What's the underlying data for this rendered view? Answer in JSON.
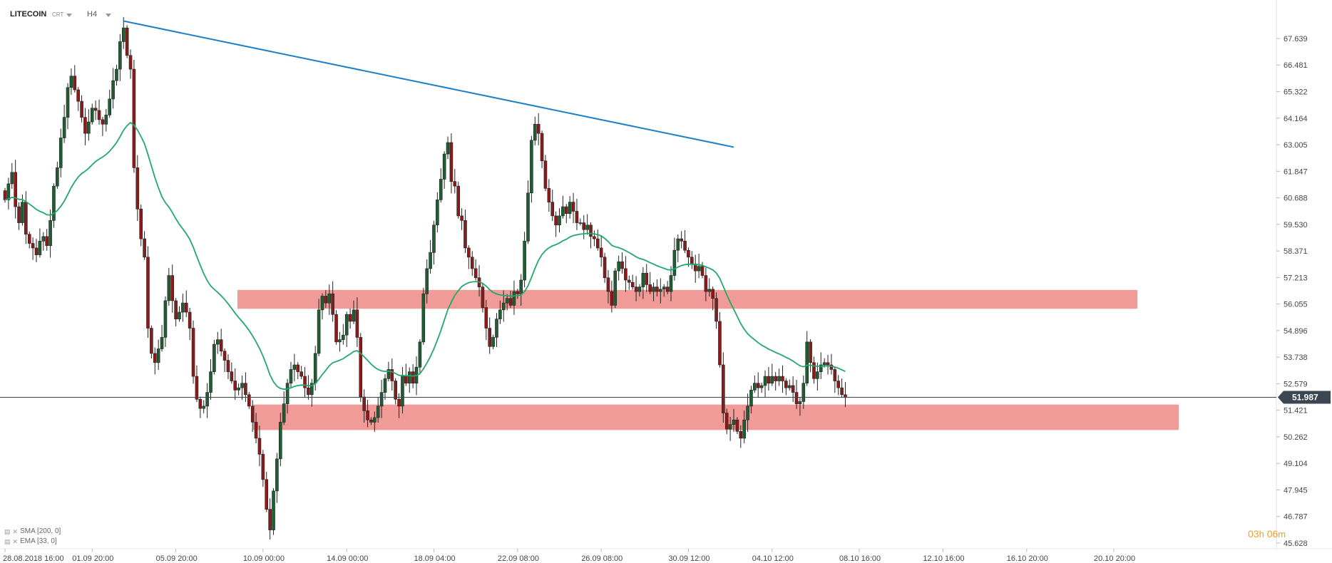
{
  "header": {
    "instrument": "LITECOIN",
    "price_type": "CRT",
    "timeframe": "H4"
  },
  "indicators": [
    {
      "icon": "settings-icon",
      "close": "✕",
      "label": "SMA [200, 0]"
    },
    {
      "icon": "settings-icon",
      "close": "✕",
      "label": "EMA [33, 0]"
    }
  ],
  "countdown": {
    "hours": "03",
    "hours_unit": "h",
    "minutes": "06",
    "minutes_unit": "m"
  },
  "colors": {
    "bull": "#1f5e33",
    "bear": "#8b1a1a",
    "ema": "#21a86b",
    "trendline": "#1e7fc9",
    "zone": "#ee8a86",
    "price_line": "#3a4753",
    "price_badge": "#3a4753"
  },
  "chart_data": {
    "type": "candlestick",
    "instrument": "LITECOIN",
    "timeframe": "H4",
    "ylim": [
      45.628,
      68.8
    ],
    "y_ticks": [
      "67.639",
      "66.481",
      "65.322",
      "64.164",
      "63.005",
      "61.847",
      "60.688",
      "59.530",
      "58.371",
      "57.213",
      "56.055",
      "54.896",
      "53.738",
      "52.579",
      "51.421",
      "50.262",
      "49.104",
      "47.945",
      "46.787",
      "45.628"
    ],
    "x_ticks": [
      "28.08.2018 16:00",
      "01.09 20:00",
      "05.09 20:00",
      "10.09 00:00",
      "14.09 00:00",
      "18.09 04:00",
      "22.09 08:00",
      "26.09 08:00",
      "30.09 12:00",
      "04.10 12:00",
      "08.10 16:00",
      "12.10 16:00",
      "16.10 20:00",
      "20.10 20:00"
    ],
    "x_tick_bars": [
      0,
      25,
      49,
      74,
      98,
      123,
      147,
      171,
      196,
      220,
      245,
      269,
      293,
      318
    ],
    "current_price": "51.987",
    "current_price_value": 51.987,
    "closes": [
      60.6,
      61.3,
      61.8,
      60.3,
      59.6,
      60.5,
      59.1,
      58.7,
      58.5,
      58.2,
      58.8,
      59.0,
      58.6,
      59.7,
      61.2,
      62.0,
      63.3,
      64.2,
      65.5,
      66.0,
      65.4,
      64.9,
      64.2,
      63.5,
      64.0,
      64.6,
      64.5,
      64.1,
      63.9,
      64.3,
      65.0,
      65.8,
      66.3,
      67.5,
      68.1,
      66.9,
      66.3,
      62.0,
      60.2,
      58.9,
      58.1,
      55.0,
      53.9,
      53.5,
      54.1,
      54.6,
      56.2,
      57.3,
      56.2,
      55.4,
      55.7,
      56.1,
      55.7,
      55.0,
      52.9,
      51.9,
      51.5,
      51.6,
      52.2,
      53.1,
      54.3,
      54.5,
      54.0,
      53.6,
      53.1,
      52.7,
      52.3,
      52.4,
      52.6,
      52.1,
      51.6,
      50.9,
      50.2,
      49.5,
      48.4,
      47.1,
      46.2,
      47.9,
      49.3,
      50.9,
      51.7,
      52.6,
      53.2,
      53.4,
      53.1,
      52.9,
      52.4,
      52.1,
      52.6,
      53.9,
      55.8,
      56.4,
      56.1,
      56.5,
      55.6,
      54.4,
      54.5,
      54.7,
      55.6,
      55.3,
      55.8,
      54.6,
      52.0,
      51.4,
      51.0,
      50.9,
      51.1,
      51.6,
      52.2,
      52.8,
      53.2,
      52.7,
      51.9,
      51.6,
      52.9,
      52.6,
      53.1,
      52.6,
      53.3,
      54.4,
      56.5,
      57.6,
      58.3,
      59.5,
      60.6,
      61.5,
      62.6,
      63.1,
      61.4,
      61.2,
      59.9,
      59.7,
      58.5,
      58.1,
      57.6,
      57.2,
      56.8,
      55.9,
      55.0,
      54.2,
      54.6,
      55.4,
      55.8,
      56.1,
      56.3,
      56.0,
      56.6,
      56.5,
      57.1,
      58.8,
      60.9,
      63.2,
      63.9,
      63.5,
      62.3,
      61.1,
      60.5,
      59.9,
      59.5,
      59.9,
      60.3,
      60.0,
      60.5,
      60.1,
      59.6,
      59.6,
      59.3,
      59.5,
      59.0,
      58.9,
      58.5,
      58.1,
      57.2,
      56.6,
      56.0,
      57.5,
      57.9,
      57.6,
      57.1,
      57.0,
      56.8,
      56.6,
      56.8,
      57.4,
      56.9,
      56.6,
      56.8,
      56.6,
      56.7,
      56.8,
      56.6,
      57.3,
      58.4,
      58.9,
      58.8,
      58.4,
      58.1,
      57.8,
      57.5,
      57.7,
      57.3,
      56.6,
      56.7,
      56.3,
      55.3,
      53.4,
      51.3,
      50.6,
      50.8,
      51.0,
      50.5,
      50.2,
      51.0,
      51.6,
      52.3,
      52.6,
      52.4,
      52.5,
      52.9,
      52.6,
      52.9,
      52.7,
      52.9,
      52.7,
      52.4,
      52.5,
      52.2,
      51.7,
      51.8,
      52.6,
      54.4,
      53.5,
      52.8,
      53.1,
      53.4,
      53.5,
      53.4,
      53.2,
      52.7,
      52.4,
      52.1,
      51.98
    ],
    "ema_period": 33,
    "horizontal_zones": [
      [
        55.85,
        56.67
      ],
      [
        50.56,
        51.67
      ]
    ],
    "trendline": {
      "from": [
        34,
        68.4
      ],
      "to": [
        209,
        62.9
      ]
    }
  }
}
